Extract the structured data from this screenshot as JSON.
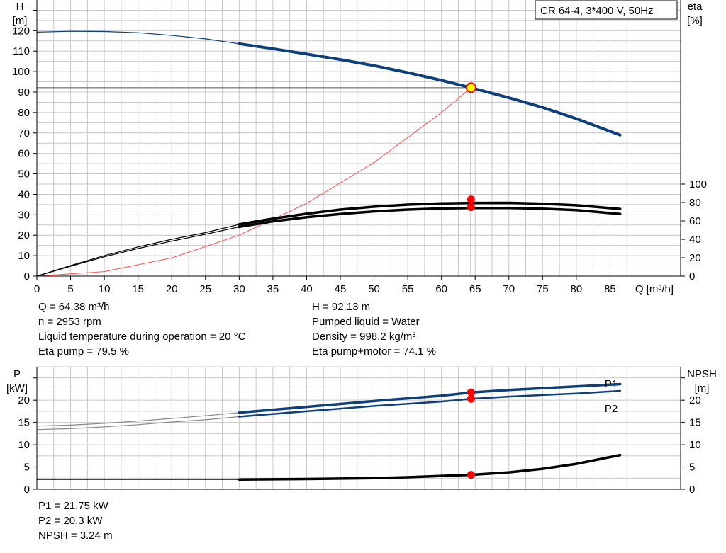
{
  "chart_data": [
    {
      "type": "line",
      "title": "CR 64-4, 3*400 V, 50Hz",
      "xlabel": "Q [m³/h]",
      "ylabel_left": [
        "H",
        "[m]"
      ],
      "ylabel_right": [
        "eta",
        "[%]"
      ],
      "x_ticks": [
        0,
        5,
        10,
        15,
        20,
        25,
        30,
        35,
        40,
        45,
        50,
        55,
        60,
        65,
        70,
        75,
        80,
        85
      ],
      "y_left_ticks": [
        0,
        10,
        20,
        30,
        40,
        50,
        60,
        70,
        80,
        90,
        100,
        110,
        120
      ],
      "y_right_ticks": [
        0,
        20,
        40,
        60,
        80,
        100
      ],
      "xlim": [
        0,
        90
      ],
      "ylim_left": [
        0,
        135
      ],
      "ylim_right": [
        0,
        100
      ],
      "grid": true,
      "series": [
        {
          "name": "H",
          "axis": "left",
          "color": "#0d3f7a",
          "points": [
            [
              0,
              119.3
            ],
            [
              5,
              119.7
            ],
            [
              10,
              119.6
            ],
            [
              15,
              119.0
            ],
            [
              20,
              117.7
            ],
            [
              25,
              116.0
            ],
            [
              30,
              113.6
            ],
            [
              35,
              111.2
            ],
            [
              40,
              108.6
            ],
            [
              45,
              105.9
            ],
            [
              50,
              102.9
            ],
            [
              55,
              99.5
            ],
            [
              60,
              95.7
            ],
            [
              64.38,
              92.13
            ],
            [
              70,
              87.2
            ],
            [
              75,
              82.5
            ],
            [
              80,
              77.0
            ],
            [
              86.5,
              69.0
            ]
          ]
        },
        {
          "name": "Eta pump",
          "axis": "right",
          "color": "#000000",
          "points": [
            [
              0,
              0
            ],
            [
              5,
              11.5
            ],
            [
              10,
              22.2
            ],
            [
              15,
              31.7
            ],
            [
              20,
              40.0
            ],
            [
              25,
              47.3
            ],
            [
              30,
              56.2
            ],
            [
              35,
              62.5
            ],
            [
              40,
              67.8
            ],
            [
              45,
              72.3
            ],
            [
              50,
              75.5
            ],
            [
              55,
              77.7
            ],
            [
              60,
              79.0
            ],
            [
              64.38,
              79.5
            ],
            [
              70,
              79.6
            ],
            [
              75,
              78.7
            ],
            [
              80,
              77.0
            ],
            [
              86.5,
              73.0
            ]
          ]
        },
        {
          "name": "Eta pump+motor",
          "axis": "right",
          "color": "#000000",
          "points": [
            [
              0,
              0
            ],
            [
              5,
              10.8
            ],
            [
              10,
              21.0
            ],
            [
              15,
              30.0
            ],
            [
              20,
              38.0
            ],
            [
              25,
              45.5
            ],
            [
              30,
              53.5
            ],
            [
              35,
              59.5
            ],
            [
              40,
              64.0
            ],
            [
              45,
              67.5
            ],
            [
              50,
              70.3
            ],
            [
              55,
              72.3
            ],
            [
              60,
              73.5
            ],
            [
              64.38,
              74.1
            ],
            [
              70,
              74.1
            ],
            [
              75,
              73.3
            ],
            [
              80,
              71.7
            ],
            [
              86.5,
              67.5
            ]
          ]
        },
        {
          "name": "System curve",
          "axis": "left",
          "color": "#ff4d4d",
          "points": [
            [
              0,
              0
            ],
            [
              10,
              2.2
            ],
            [
              20,
              8.9
            ],
            [
              30,
              20.0
            ],
            [
              40,
              35.6
            ],
            [
              50,
              55.6
            ],
            [
              60,
              80.0
            ],
            [
              64.38,
              92.13
            ]
          ]
        }
      ],
      "duty_point": {
        "x": 64.38,
        "y": 92.13
      }
    },
    {
      "type": "line",
      "xlabel": "",
      "ylabel_left": [
        "P",
        "[kW]"
      ],
      "ylabel_right": [
        "NPSH",
        "[m]"
      ],
      "y_left_ticks": [
        0,
        5,
        10,
        15,
        20
      ],
      "y_right_ticks": [
        0,
        5,
        10,
        15,
        20
      ],
      "xlim": [
        0,
        90
      ],
      "ylim_left": [
        0,
        27.5
      ],
      "ylim_right": [
        0,
        27.5
      ],
      "grid": true,
      "series": [
        {
          "name": "P1",
          "axis": "left",
          "color": "#0d3f7a",
          "points": [
            [
              0,
              14.2
            ],
            [
              5,
              14.4
            ],
            [
              10,
              14.8
            ],
            [
              15,
              15.3
            ],
            [
              20,
              15.9
            ],
            [
              25,
              16.5
            ],
            [
              30,
              17.2
            ],
            [
              40,
              18.5
            ],
            [
              50,
              19.8
            ],
            [
              60,
              21.0
            ],
            [
              64.38,
              21.75
            ],
            [
              70,
              22.3
            ],
            [
              80,
              23.1
            ],
            [
              86.5,
              23.6
            ]
          ]
        },
        {
          "name": "P2",
          "axis": "left",
          "color": "#0d3f7a",
          "points": [
            [
              0,
              13.4
            ],
            [
              5,
              13.6
            ],
            [
              10,
              14.0
            ],
            [
              15,
              14.5
            ],
            [
              20,
              15.1
            ],
            [
              25,
              15.6
            ],
            [
              30,
              16.3
            ],
            [
              40,
              17.5
            ],
            [
              50,
              18.7
            ],
            [
              60,
              19.7
            ],
            [
              64.38,
              20.3
            ],
            [
              70,
              20.8
            ],
            [
              80,
              21.5
            ],
            [
              86.5,
              22.1
            ]
          ]
        },
        {
          "name": "NPSH",
          "axis": "right",
          "color": "#000000",
          "points": [
            [
              0,
              2.2
            ],
            [
              30,
              2.2
            ],
            [
              40,
              2.3
            ],
            [
              50,
              2.5
            ],
            [
              55,
              2.7
            ],
            [
              60,
              3.0
            ],
            [
              64.38,
              3.24
            ],
            [
              70,
              3.8
            ],
            [
              75,
              4.6
            ],
            [
              80,
              5.7
            ],
            [
              86.5,
              7.7
            ]
          ]
        }
      ],
      "duty_point_x": 64.38
    }
  ],
  "info": {
    "q": "Q = 64.38 m³/h",
    "n": "n = 2953 rpm",
    "temp": "Liquid temperature during operation = 20 °C",
    "eta_pump": "Eta pump = 79.5 %",
    "h": "H = 92.13 m",
    "liquid": "Pumped liquid = Water",
    "density": "Density = 998.2 kg/m³",
    "eta_total": "Eta pump+motor = 74.1 %",
    "p1": "P1 = 21.75 kW",
    "p2": "P2 = 20.3 kW",
    "npsh": "NPSH = 3.24 m"
  },
  "colors": {
    "curve_blue": "#0d3f7a",
    "duty_red": "#ff0000",
    "duty_yellow": "#ffff00",
    "grid": "#c8c8c8"
  }
}
